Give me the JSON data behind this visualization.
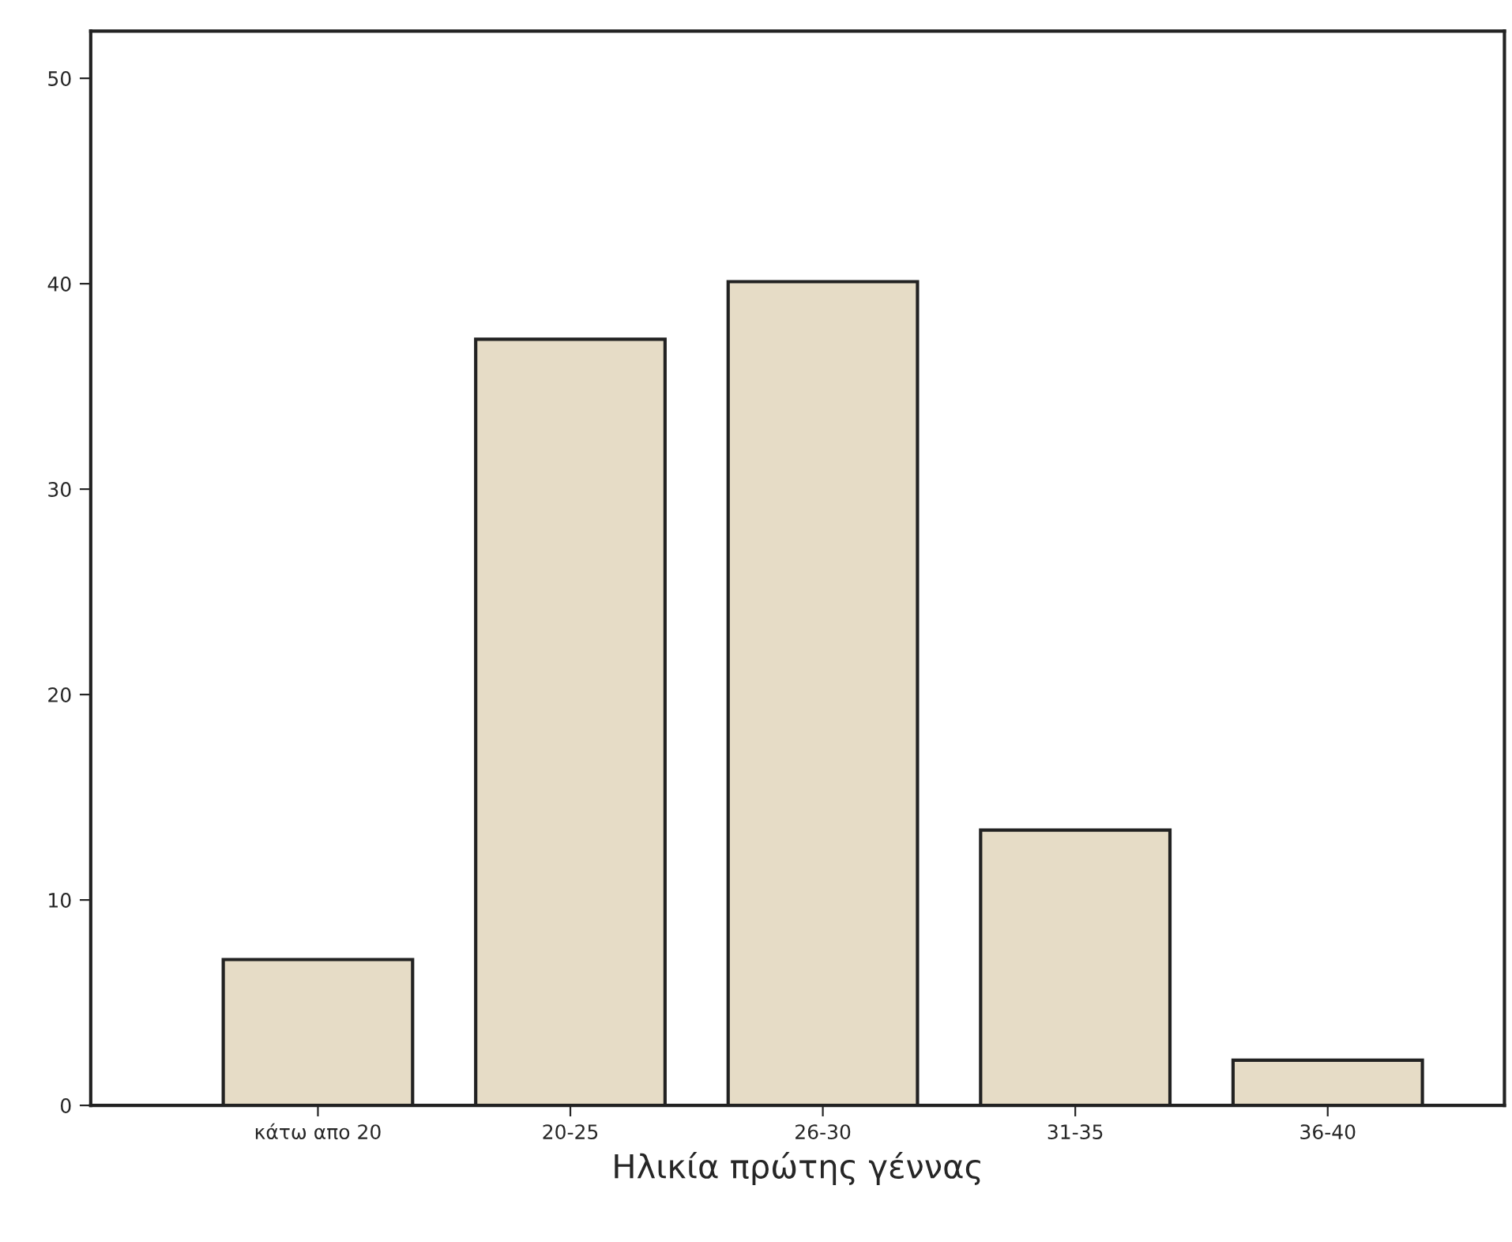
{
  "chart_data": {
    "type": "bar",
    "xlabel": "Ηλικία πρώτης γέννας",
    "categories": [
      "κάτω απο 20",
      "20-25",
      "26-30",
      "31-35",
      "36-40"
    ],
    "values": [
      7.1,
      37.3,
      40.1,
      13.4,
      2.2
    ],
    "color": "#e6dcc6",
    "ylim": [
      0,
      52.3
    ],
    "yticks": [
      0,
      10,
      20,
      30,
      40,
      50
    ],
    "grid": false
  }
}
